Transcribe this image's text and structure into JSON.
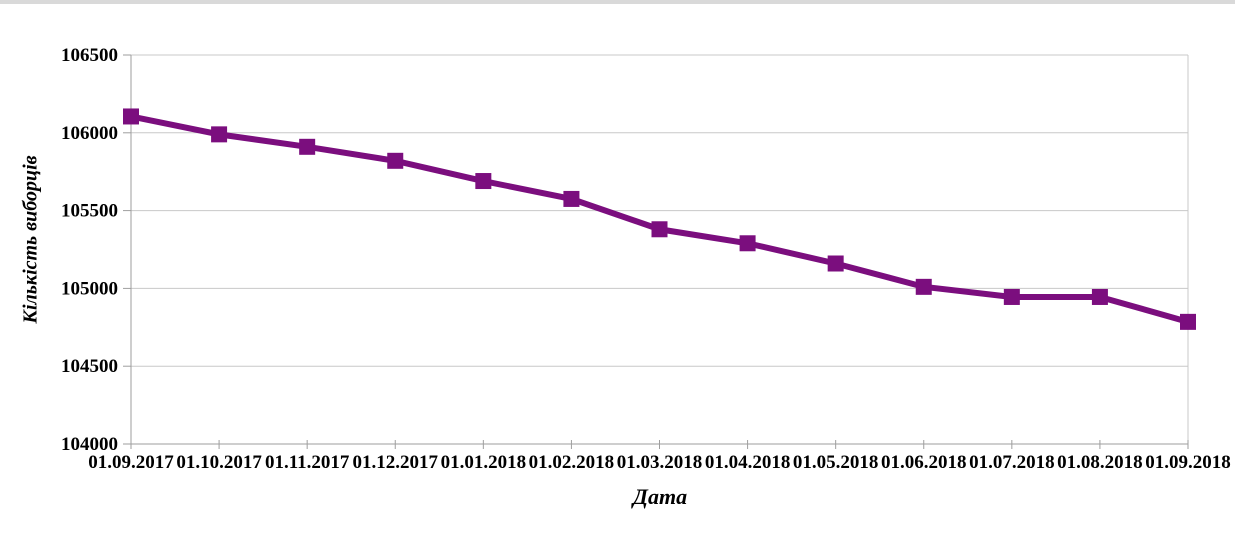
{
  "page": {
    "top_strip_color": "#D9D9D9",
    "background_color": "#FFFFFF"
  },
  "chart_data": {
    "type": "line",
    "title": "",
    "xlabel": "Дата",
    "ylabel": "Кількість виборців",
    "categories": [
      "01.09.2017",
      "01.10.2017",
      "01.11.2017",
      "01.12.2017",
      "01.01.2018",
      "01.02.2018",
      "01.03.2018",
      "01.04.2018",
      "01.05.2018",
      "01.06.2018",
      "01.07.2018",
      "01.08.2018",
      "01.09.2018"
    ],
    "values": [
      106105,
      105990,
      105910,
      105820,
      105690,
      105575,
      105380,
      105290,
      105160,
      105010,
      104945,
      104945,
      104785
    ],
    "ylim": [
      104000,
      106500
    ],
    "ytick_step": 500,
    "yticks": [
      104000,
      104500,
      105000,
      105500,
      106000,
      106500
    ],
    "grid": true,
    "legend": false,
    "marker": "square",
    "line_color": "#7B0E7E",
    "gridline_color": "#C8C8C8",
    "axis_color": "#9E9E9E",
    "text_color": "#000000"
  }
}
